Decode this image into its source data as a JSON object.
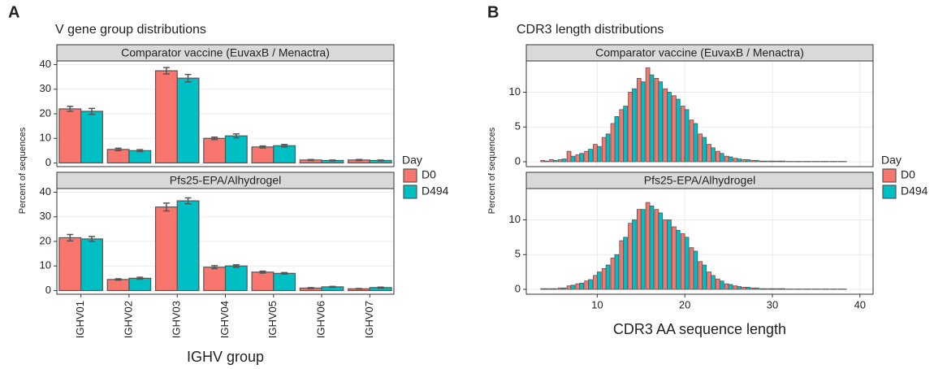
{
  "chart_data": [
    {
      "type": "bar",
      "panel_label": "A",
      "title": "V gene  group distributions",
      "x_label": "IGHV group",
      "y_label": "Percent of sequences",
      "legend_title": "Day",
      "categories": [
        "IGHV01",
        "IGHV02",
        "IGHV03",
        "IGHV04",
        "IGHV05",
        "IGHV06",
        "IGHV07"
      ],
      "ylim": [
        -1.5,
        41.5
      ],
      "yticks": [
        0,
        10,
        20,
        30,
        40
      ],
      "grid": true,
      "facets": [
        {
          "strip": "Comparator vaccine (EuvaxB / Menactra)",
          "series": [
            {
              "name": "D0",
              "color": "#f8766d",
              "values": [
                22,
                5.5,
                37.5,
                10,
                6.5,
                1.2,
                1.2
              ],
              "errors": [
                1,
                0.5,
                1.3,
                0.5,
                0.4,
                0.2,
                0.2
              ]
            },
            {
              "name": "D494",
              "color": "#00bfc4",
              "values": [
                21,
                5,
                34.5,
                11,
                7,
                1,
                1
              ],
              "errors": [
                1.2,
                0.4,
                1.5,
                0.8,
                0.5,
                0.2,
                0.2
              ]
            }
          ]
        },
        {
          "strip": "Pfs25-EPA/Alhydrogel",
          "series": [
            {
              "name": "D0",
              "color": "#f8766d",
              "values": [
                21.5,
                4.5,
                34,
                9.5,
                7.5,
                1,
                0.7
              ],
              "errors": [
                1.3,
                0.3,
                1.6,
                0.6,
                0.4,
                0.2,
                0.1
              ]
            },
            {
              "name": "D494",
              "color": "#00bfc4",
              "values": [
                21,
                5,
                36.5,
                10,
                7,
                1.5,
                1.2
              ],
              "errors": [
                1,
                0.4,
                1.2,
                0.5,
                0.3,
                0.2,
                0.2
              ]
            }
          ]
        }
      ]
    },
    {
      "type": "histogram",
      "panel_label": "B",
      "title": "CDR3 length distributions",
      "x_label": "CDR3 AA sequence length",
      "y_label": "Percent of sequences",
      "legend_title": "Day",
      "x": [
        4,
        5,
        6,
        7,
        8,
        9,
        10,
        11,
        12,
        13,
        14,
        15,
        16,
        17,
        18,
        19,
        20,
        21,
        22,
        23,
        24,
        25,
        26,
        27,
        28,
        29,
        30,
        31,
        32,
        33,
        34,
        35,
        36,
        37,
        38
      ],
      "xlim": [
        1.9,
        41.5
      ],
      "xticks": [
        10,
        20,
        30,
        40
      ],
      "ylim": [
        -0.7,
        14.5
      ],
      "yticks": [
        0,
        5,
        10
      ],
      "grid": true,
      "facets": [
        {
          "strip": "Comparator vaccine (EuvaxB / Menactra)",
          "series": [
            {
              "name": "D0",
              "color": "#f8766d",
              "values": [
                0.2,
                0.3,
                0.3,
                1.5,
                1.0,
                1.5,
                2.5,
                3.5,
                5.5,
                7.5,
                10,
                12,
                13.5,
                12,
                10.5,
                9.5,
                8,
                6,
                4,
                2.5,
                1.5,
                0.8,
                0.5,
                0.3,
                0.2,
                0.1,
                0.1,
                0.1,
                0.05,
                0.05,
                0.05,
                0.05,
                0.05,
                0.05,
                0.05
              ]
            },
            {
              "name": "D494",
              "color": "#00bfc4",
              "values": [
                0.1,
                0.2,
                0.4,
                0.8,
                1.2,
                1.8,
                2.2,
                4,
                6.5,
                8,
                10.5,
                11.5,
                12.5,
                11.5,
                10,
                9,
                7.5,
                5.5,
                3.5,
                2,
                1.2,
                0.7,
                0.4,
                0.3,
                0.2,
                0.1,
                0.1,
                0.1,
                0.05,
                0.05,
                0.05,
                0.05,
                0.05,
                0.05,
                0.05
              ]
            }
          ]
        },
        {
          "strip": "Pfs25-EPA/Alhydrogel",
          "series": [
            {
              "name": "D0",
              "color": "#f8766d",
              "values": [
                0.1,
                0.1,
                0.2,
                0.5,
                0.8,
                1.2,
                2,
                3,
                4.5,
                7,
                9.5,
                11.5,
                12.5,
                11.5,
                10,
                9,
                8,
                6,
                4,
                2.5,
                1.5,
                0.8,
                0.5,
                0.3,
                0.2,
                0.1,
                0.1,
                0.1,
                0.05,
                0.05,
                0.05,
                0.05,
                0.05,
                0.05,
                0.05
              ]
            },
            {
              "name": "D494",
              "color": "#00bfc4",
              "values": [
                0.1,
                0.1,
                0.2,
                0.6,
                0.9,
                1.4,
                2.5,
                3.5,
                5,
                7.5,
                10,
                11.5,
                12,
                11,
                10,
                8.5,
                7.5,
                5.5,
                3.5,
                2,
                1.2,
                0.7,
                0.4,
                0.3,
                0.2,
                0.1,
                0.1,
                0.1,
                0.05,
                0.05,
                0.05,
                0.05,
                0.05,
                0.05,
                0.05
              ]
            }
          ]
        }
      ]
    }
  ]
}
